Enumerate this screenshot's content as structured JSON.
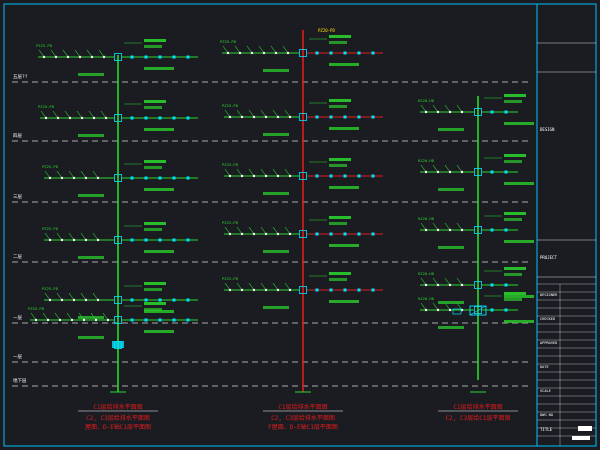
{
  "floors": [
    "五层??",
    "四层",
    "三层",
    "二层",
    "一层",
    "一层",
    "地下层"
  ],
  "columns": [
    {
      "tag": "PZ",
      "labels": [
        "PZ25-PD",
        "PZ25-PD",
        "PZ25-PD",
        "PZ25-PD",
        "PZ25-PD",
        "PZ25-PD"
      ],
      "caption_line1": "C1层给排水平面图",
      "caption_line2": "C2, C3层给排水平面图",
      "caption_line3": "屋面、D-E轴C1层平面图"
    },
    {
      "tag": "PZ",
      "labels": [
        "PZ25-PD",
        "PZ25-PD",
        "PZ25-PD",
        "PZ25-PD",
        "PZ25-PD"
      ],
      "caption_line1": "C1层给排水平面图",
      "caption_line2": "C2, C3层给排水平面图",
      "caption_line3": "F屋面、D-E轴C1层平面图"
    },
    {
      "tag": "RZ",
      "labels": [
        "RZ20-HD",
        "RZ20-HD",
        "RZ20-HD",
        "RZ20-HD",
        "RZ20-HD"
      ],
      "caption_line1": "C1层给排水平面图",
      "caption_line2": "C2, C3层给C1层平面图",
      "caption_line3": ""
    }
  ],
  "top_tag": "PZ20-PD",
  "title_block": {
    "row1": "DESIGN",
    "row2": "PROJECT",
    "row3": "DESIGNER",
    "row4": "CHECKED",
    "row5": "APPROVED",
    "row6": "DATE",
    "row7": "SCALE",
    "row8": "DWG NO",
    "title": "TITLE"
  },
  "colors": {
    "background": "#1a1c22",
    "frame": "#00bfff",
    "green": "#2bd92b",
    "red": "#e21b1b",
    "yellow": "#ffe000",
    "cyan": "#00e5ff",
    "white": "#ffffff"
  }
}
